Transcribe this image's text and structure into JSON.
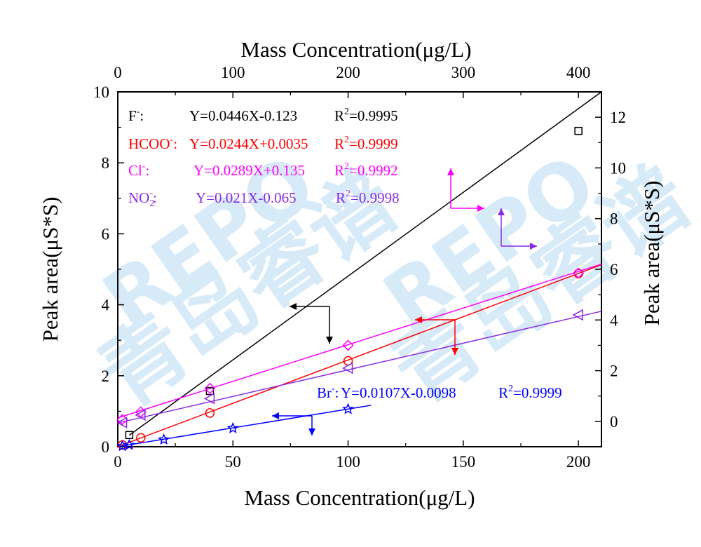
{
  "chart_data": {
    "type": "scatter",
    "title": "",
    "x_bottom": {
      "label": "Mass Concentration(μg/L)",
      "range": [
        0,
        210
      ],
      "ticks": [
        0,
        50,
        100,
        150,
        200
      ],
      "tick_labels": [
        "0",
        "50",
        "100",
        "150",
        "200"
      ]
    },
    "x_top": {
      "label": "Mass Concentration(μg/L)",
      "range": [
        0,
        420
      ],
      "ticks": [
        0,
        100,
        200,
        300,
        400
      ],
      "tick_labels": [
        "0",
        "100",
        "200",
        "300",
        "400"
      ]
    },
    "y_left": {
      "label": "Peak area(μS*S)",
      "range": [
        0,
        10
      ],
      "ticks": [
        0,
        2,
        4,
        6,
        8,
        10
      ],
      "tick_labels": [
        "0",
        "2",
        "4",
        "6",
        "8",
        "10"
      ]
    },
    "y_right": {
      "label": "Peak area(μS*S)",
      "range": [
        -1,
        13
      ],
      "ticks": [
        0,
        2,
        4,
        6,
        8,
        10,
        12
      ],
      "tick_labels": [
        "0",
        "2",
        "4",
        "6",
        "8",
        "10",
        "12"
      ]
    },
    "series": [
      {
        "name": "F-",
        "label_text": "F",
        "label_sup": "-",
        "label_sub": "",
        "label_suffix": ":",
        "equation": "Y=0.0446X-0.123",
        "r2_value": "=0.9995",
        "color": "#000000",
        "marker": "square",
        "axes": "top-left",
        "slope": 0.0446,
        "intercept": -0.123,
        "x": [
          10,
          80,
          400
        ],
        "y": [
          0.33,
          1.57,
          8.9
        ]
      },
      {
        "name": "HCOO-",
        "label_text": "HCOO",
        "label_sup": "-",
        "label_sub": "",
        "label_suffix": ":",
        "equation": "Y=0.0244X+0.0035",
        "r2_value": "=0.9999",
        "color": "#ff0000",
        "marker": "circle",
        "axes": "bottom-left",
        "slope": 0.0244,
        "intercept": 0.0035,
        "x": [
          2,
          10,
          40,
          100,
          200
        ],
        "y": [
          0.05,
          0.25,
          0.95,
          2.42,
          4.88
        ]
      },
      {
        "name": "Cl-",
        "label_text": "Cl",
        "label_sup": "-",
        "label_sub": "",
        "label_suffix": ":",
        "equation": "Y=0.0289X+0.135",
        "r2_value": "=0.9992",
        "color": "#ff00ff",
        "marker": "diamond",
        "axes": "bottom-right",
        "slope": 0.0289,
        "intercept": 0.135,
        "x": [
          2,
          10,
          40,
          100,
          200
        ],
        "y": [
          0.07,
          0.37,
          1.3,
          3.0,
          5.85
        ]
      },
      {
        "name": "NO2-",
        "label_text": "NO",
        "label_sup": "-",
        "label_sub": "2",
        "label_suffix": ":",
        "equation": "Y=0.021X-0.065",
        "r2_value": "=0.9998",
        "color": "#8a2be2",
        "marker": "triangle-left",
        "axes": "bottom-right",
        "slope": 0.021,
        "intercept": -0.065,
        "x": [
          2,
          10,
          40,
          100,
          200
        ],
        "y": [
          -0.05,
          0.25,
          0.9,
          2.1,
          4.2
        ]
      },
      {
        "name": "Br-",
        "label_text": "Br",
        "label_sup": "-",
        "label_suffix": ":",
        "equation": "Y=0.0107X-0.0098",
        "r2_value": "=0.9999",
        "color": "#0000ff",
        "marker": "star",
        "axes": "bottom-left",
        "slope": 0.0107,
        "intercept": -0.0098,
        "x": [
          2,
          5,
          20,
          50,
          100
        ],
        "y": [
          0.02,
          0.05,
          0.2,
          0.52,
          1.06
        ]
      }
    ],
    "r2_label": "R",
    "r2_sup": "2",
    "grid": false,
    "watermark": [
      "REPO",
      "青岛睿谱",
      "REPO",
      "青岛睿谱"
    ]
  }
}
